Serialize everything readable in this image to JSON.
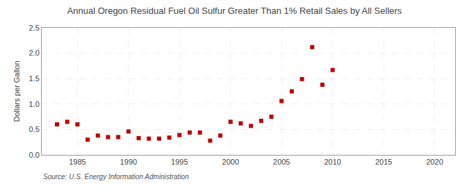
{
  "chart_data": {
    "type": "scatter",
    "title": "Annual Oregon Residual Fuel Oil Sulfur Greater Than 1% Retail Sales by All Sellers",
    "ylabel": "Dollars per Gallon",
    "source": "Source: U.S. Energy Information Administration",
    "marker": "square",
    "color": "#c00000",
    "grid": true,
    "xlim": [
      1981.5,
      2022
    ],
    "ylim": [
      0.0,
      2.5
    ],
    "xticks": [
      1985,
      1990,
      1995,
      2000,
      2005,
      2010,
      2015,
      2020
    ],
    "yticks": [
      {
        "value": 0.0,
        "label": "0.0"
      },
      0.5,
      {
        "value": 1.0,
        "label": "1.0"
      },
      1.5,
      {
        "value": 2.0,
        "label": "2.0"
      },
      2.5
    ],
    "x": [
      1983,
      1984,
      1985,
      1986,
      1987,
      1988,
      1989,
      1990,
      1991,
      1992,
      1993,
      1994,
      1995,
      1996,
      1997,
      1998,
      1999,
      2000,
      2001,
      2002,
      2003,
      2004,
      2005,
      2006,
      2007,
      2008,
      2009,
      2010
    ],
    "values": [
      0.6,
      0.65,
      0.6,
      0.3,
      0.38,
      0.35,
      0.35,
      0.46,
      0.33,
      0.32,
      0.32,
      0.34,
      0.39,
      0.44,
      0.44,
      0.28,
      0.38,
      0.65,
      0.62,
      0.57,
      0.67,
      0.75,
      1.06,
      1.25,
      1.49,
      2.12,
      1.38,
      1.67
    ]
  }
}
